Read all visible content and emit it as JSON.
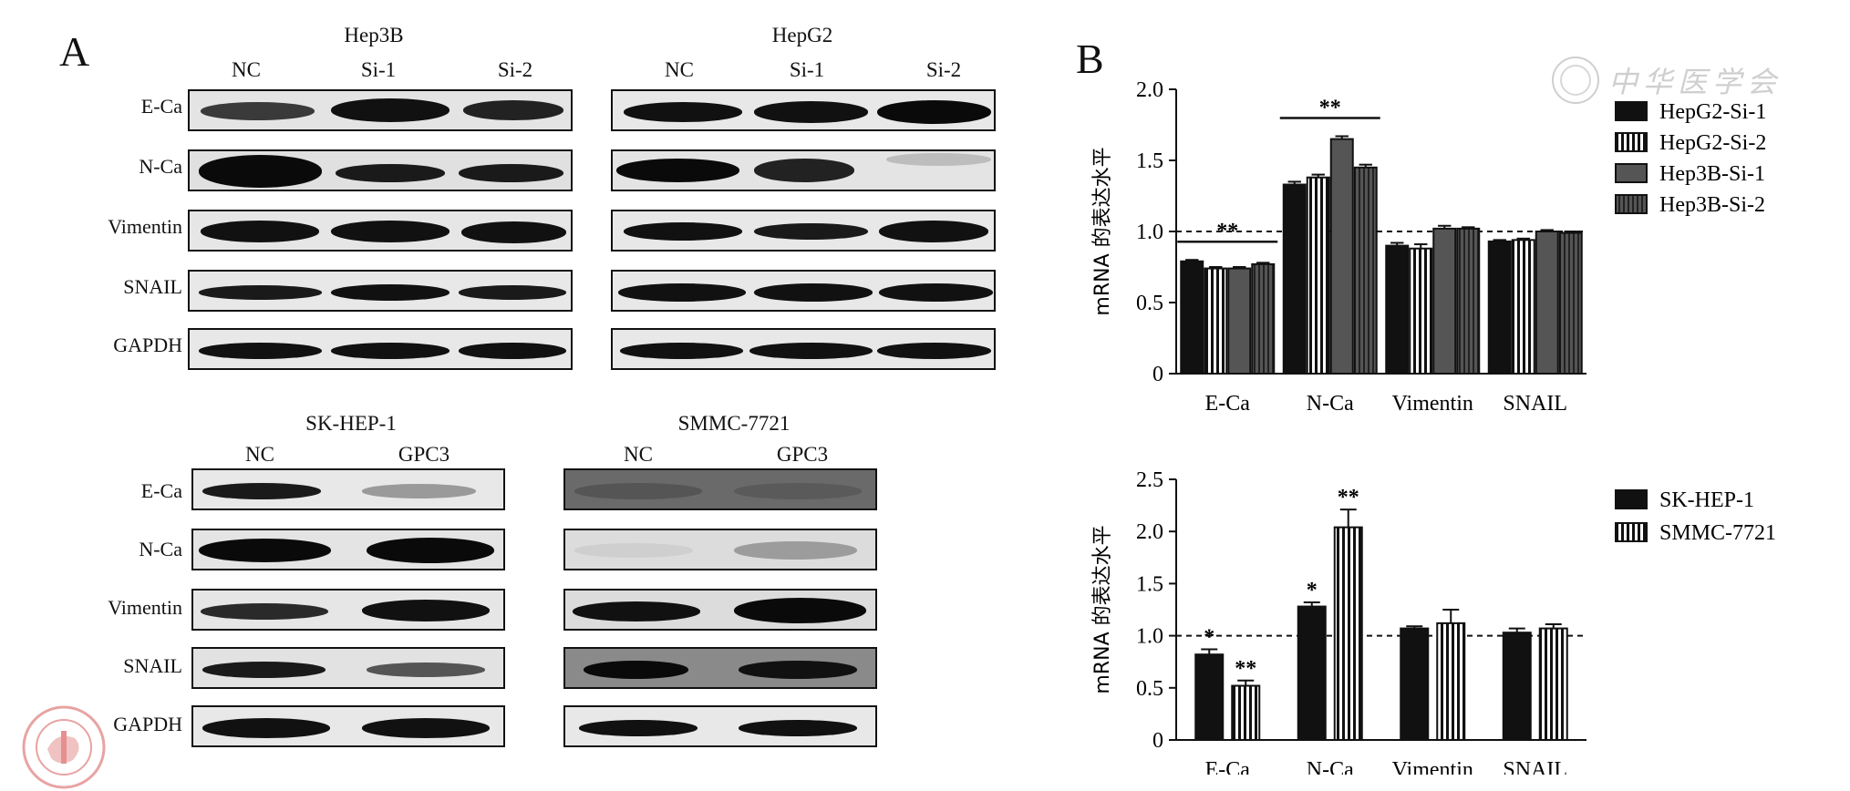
{
  "panelA": {
    "label": "A",
    "groups": [
      {
        "name": "Hep3B",
        "columns": [
          "NC",
          "Si-1",
          "Si-2"
        ]
      },
      {
        "name": "HepG2",
        "columns": [
          "NC",
          "Si-1",
          "Si-2"
        ]
      },
      {
        "name": "SK-HEP-1",
        "columns": [
          "NC",
          "GPC3"
        ]
      },
      {
        "name": "SMMC-7721",
        "columns": [
          "NC",
          "GPC3"
        ]
      }
    ],
    "rows_top": [
      "E-Ca",
      "N-Ca",
      "Vimentin",
      "SNAIL",
      "GAPDH"
    ],
    "rows_bottom": [
      "E-Ca",
      "N-Ca",
      "Vimentin",
      "SNAIL",
      "GAPDH"
    ]
  },
  "panelB": {
    "label": "B"
  },
  "watermark": {
    "text": "中华医学会"
  },
  "chart_data": [
    {
      "type": "bar",
      "ylabel": "mRNA 的表达水平",
      "ylim": [
        0,
        2.0
      ],
      "yticks": [
        "0",
        "0.5",
        "1.0",
        "1.5",
        "2.0"
      ],
      "categories": [
        "E-Ca",
        "N-Ca",
        "Vimentin",
        "SNAIL"
      ],
      "reference_line": 1.0,
      "series": [
        {
          "name": "HepG2-Si-1",
          "values": [
            0.79,
            1.33,
            0.9,
            0.93
          ],
          "errors": [
            0.01,
            0.02,
            0.02,
            0.01
          ],
          "pattern": "black"
        },
        {
          "name": "HepG2-Si-2",
          "values": [
            0.74,
            1.38,
            0.88,
            0.94
          ],
          "errors": [
            0.01,
            0.02,
            0.03,
            0.01
          ],
          "pattern": "vstripe"
        },
        {
          "name": "Hep3B-Si-1",
          "values": [
            0.74,
            1.65,
            1.02,
            1.0
          ],
          "errors": [
            0.01,
            0.02,
            0.02,
            0.01
          ],
          "pattern": "darkgray"
        },
        {
          "name": "Hep3B-Si-2",
          "values": [
            0.77,
            1.45,
            1.02,
            0.99
          ],
          "errors": [
            0.01,
            0.02,
            0.01,
            0.01
          ],
          "pattern": "hatch"
        }
      ],
      "annotations": [
        {
          "category": "E-Ca",
          "text": "**"
        },
        {
          "category": "N-Ca",
          "text": "**"
        }
      ],
      "legend": "right"
    },
    {
      "type": "bar",
      "ylabel": "mRNA 的表达水平",
      "ylim": [
        0,
        2.5
      ],
      "yticks": [
        "0",
        "0.5",
        "1.0",
        "1.5",
        "2.0",
        "2.5"
      ],
      "categories": [
        "E-Ca",
        "N-Ca",
        "Vimentin",
        "SNAIL"
      ],
      "reference_line": 1.0,
      "series": [
        {
          "name": "SK-HEP-1",
          "values": [
            0.82,
            1.28,
            1.07,
            1.03
          ],
          "errors": [
            0.05,
            0.04,
            0.02,
            0.04
          ],
          "pattern": "black"
        },
        {
          "name": "SMMC-7721",
          "values": [
            0.52,
            2.04,
            1.12,
            1.07
          ],
          "errors": [
            0.05,
            0.17,
            0.13,
            0.04
          ],
          "pattern": "vstripe"
        }
      ],
      "annotations": [
        {
          "category": "E-Ca",
          "series": 0,
          "text": "*"
        },
        {
          "category": "E-Ca",
          "series": 1,
          "text": "**"
        },
        {
          "category": "N-Ca",
          "series": 0,
          "text": "*"
        },
        {
          "category": "N-Ca",
          "series": 1,
          "text": "**"
        }
      ],
      "legend": "right"
    }
  ]
}
